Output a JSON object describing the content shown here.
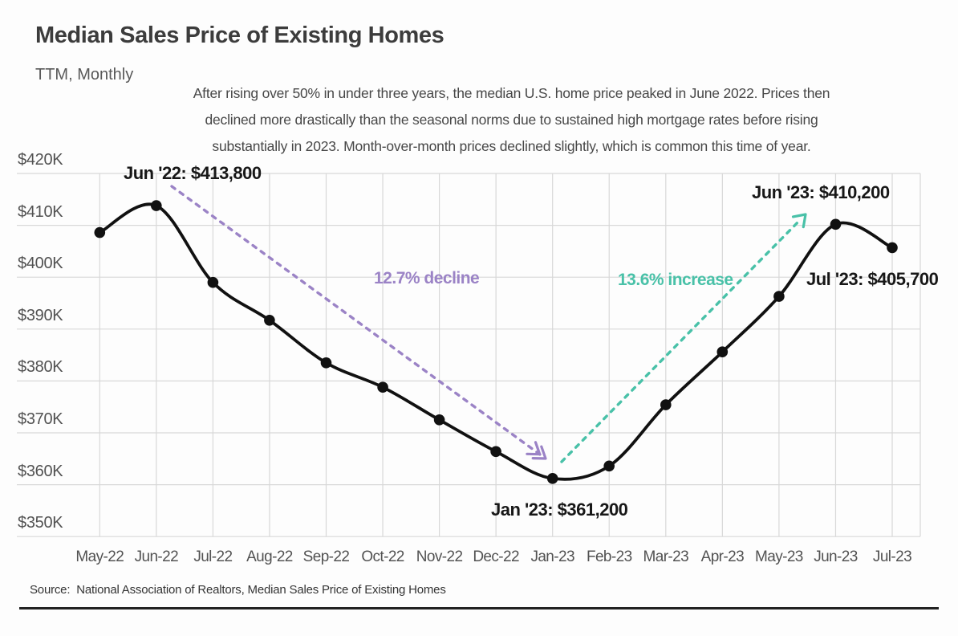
{
  "header": {
    "title": "Median Sales Price of Existing Homes",
    "subtitle": "TTM, Monthly"
  },
  "description": {
    "lines": [
      "After rising over 50% in under three years, the median U.S. home price peaked in June 2022. Prices then",
      "declined more drastically than the seasonal norms due to sustained high mortgage rates before rising",
      "substantially in 2023. Month-over-month prices declined slightly, which is common this time of year."
    ]
  },
  "chart_data": {
    "type": "line",
    "title": "Median Sales Price of Existing Homes",
    "subtitle": "TTM, Monthly",
    "categories": [
      "May-22",
      "Jun-22",
      "Jul-22",
      "Aug-22",
      "Sep-22",
      "Oct-22",
      "Nov-22",
      "Dec-22",
      "Jan-23",
      "Feb-23",
      "Mar-23",
      "Apr-23",
      "May-23",
      "Jun-23",
      "Jul-23"
    ],
    "series": [
      {
        "name": "Median sales price of existing homes",
        "values": [
          408600,
          413800,
          399000,
          391700,
          383500,
          378800,
          372500,
          366400,
          361200,
          363600,
          375400,
          385600,
          396300,
          410200,
          405700
        ]
      }
    ],
    "ylim": [
      350000,
      420000
    ],
    "y_ticks": [
      "$420K",
      "$410K",
      "$400K",
      "$390K",
      "$380K",
      "$370K",
      "$360K",
      "$350K"
    ],
    "grid": true,
    "legend": "none",
    "annotations": [
      {
        "id": "jun22",
        "label": "Jun '22: $413,800",
        "color": "#171717"
      },
      {
        "id": "jan23",
        "label": "Jan '23: $361,200",
        "color": "#171717"
      },
      {
        "id": "jun23",
        "label": "Jun '23: $410,200",
        "color": "#171717"
      },
      {
        "id": "jul23",
        "label": "Jul '23: $405,700",
        "color": "#171717"
      },
      {
        "id": "decline",
        "label": "12.7% decline",
        "color": "#9b83c6"
      },
      {
        "id": "increase",
        "label": "13.6% increase",
        "color": "#49c1a8"
      }
    ],
    "colors": {
      "line": "#111111",
      "points": "#111111",
      "grid": "#d8d8d8",
      "decline_arrow": "#9b83c6",
      "increase_arrow": "#49c1a8"
    }
  },
  "source": "Source:  National Association of Realtors, Median Sales Price of Existing Homes"
}
